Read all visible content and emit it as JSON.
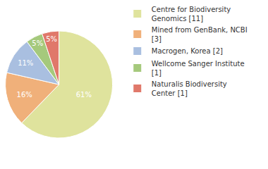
{
  "chart_data": {
    "type": "pie",
    "categories": [
      "Centre for Biodiversity Genomics [11]",
      "Mined from GenBank, NCBI [3]",
      "Macrogen, Korea [2]",
      "Wellcome Sanger Institute [1]",
      "Naturalis Biodiversity Center [1]"
    ],
    "values": [
      61,
      16,
      11,
      5,
      5
    ],
    "value_labels": [
      "61%",
      "16%",
      "11%",
      "5%",
      "5%"
    ],
    "colors": [
      "#dfe39d",
      "#f0b07a",
      "#a9bfe0",
      "#a5c97c",
      "#e0786a"
    ],
    "data_labels": true,
    "legend": "top right"
  }
}
